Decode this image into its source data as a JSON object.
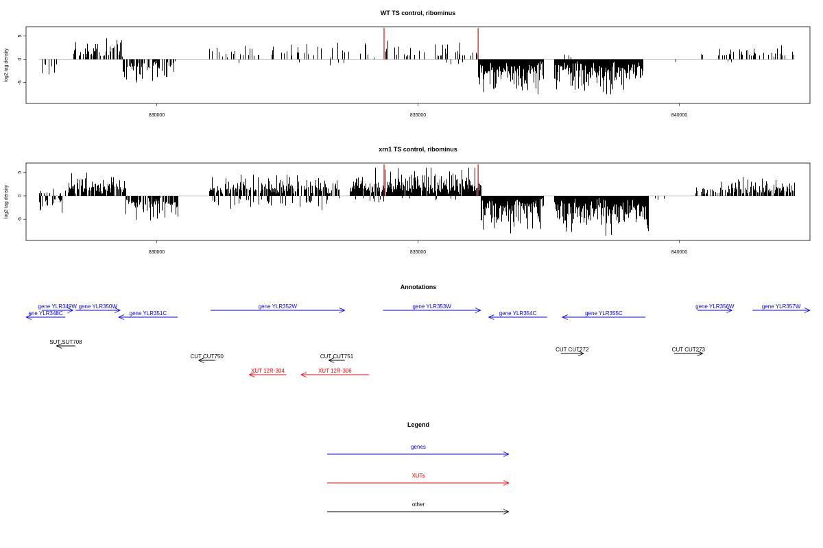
{
  "chart_data": [
    {
      "type": "bar",
      "title": "WT TS control, ribominus",
      "ylabel": "log2 tag density",
      "xlim": [
        827500,
        842500
      ],
      "ylim": [
        -9.5,
        7
      ],
      "xticks": [
        830000,
        835000,
        840000
      ],
      "yticks": [
        5,
        0,
        -5
      ],
      "markers": [
        834350,
        836150
      ],
      "segments": [
        {
          "start": 827750,
          "end": 828100,
          "sign": -1,
          "density": 0.25,
          "max": 3.5,
          "seed": 1
        },
        {
          "start": 828400,
          "end": 829350,
          "sign": 1,
          "density": 0.55,
          "max": 4.5,
          "seed": 2
        },
        {
          "start": 829350,
          "end": 830350,
          "sign": -1,
          "density": 0.6,
          "max": 5.0,
          "seed": 3
        },
        {
          "start": 831000,
          "end": 834200,
          "sign": 1,
          "density": 0.18,
          "max": 3.5,
          "seed": 4
        },
        {
          "start": 831500,
          "end": 834200,
          "sign": -1,
          "density": 0.05,
          "max": 2.0,
          "seed": 5
        },
        {
          "start": 834350,
          "end": 836150,
          "sign": 1,
          "density": 0.2,
          "max": 4.0,
          "seed": 6
        },
        {
          "start": 834500,
          "end": 836000,
          "sign": -1,
          "density": 0.04,
          "max": 2.5,
          "seed": 7
        },
        {
          "start": 836150,
          "end": 837400,
          "sign": -1,
          "density": 1.0,
          "max": 7.5,
          "seed": 8
        },
        {
          "start": 837600,
          "end": 839300,
          "sign": -1,
          "density": 1.0,
          "max": 7.5,
          "seed": 9
        },
        {
          "start": 837800,
          "end": 838000,
          "sign": 1,
          "density": 0.1,
          "max": 1.5,
          "seed": 10
        },
        {
          "start": 839900,
          "end": 840000,
          "sign": -1,
          "density": 0.2,
          "max": 1.5,
          "seed": 11
        },
        {
          "start": 840400,
          "end": 842200,
          "sign": 1,
          "density": 0.22,
          "max": 3.0,
          "seed": 12
        },
        {
          "start": 840400,
          "end": 841000,
          "sign": -1,
          "density": 0.03,
          "max": 1.5,
          "seed": 13
        }
      ]
    },
    {
      "type": "bar",
      "title": "xrn1 TS control, ribominus",
      "ylabel": "log2 tag density",
      "xlim": [
        827500,
        842500
      ],
      "ylim": [
        -9.5,
        7
      ],
      "xticks": [
        830000,
        835000,
        840000
      ],
      "yticks": [
        5,
        0,
        -5
      ],
      "markers": [
        834350,
        836150
      ],
      "segments": [
        {
          "start": 827750,
          "end": 828200,
          "sign": -1,
          "density": 0.5,
          "max": 4.5,
          "seed": 21
        },
        {
          "start": 827750,
          "end": 828300,
          "sign": 1,
          "density": 0.15,
          "max": 1.5,
          "seed": 22
        },
        {
          "start": 828300,
          "end": 829400,
          "sign": 1,
          "density": 0.85,
          "max": 5.0,
          "seed": 23
        },
        {
          "start": 829400,
          "end": 830400,
          "sign": -1,
          "density": 0.8,
          "max": 5.5,
          "seed": 24
        },
        {
          "start": 831000,
          "end": 833500,
          "sign": 1,
          "density": 0.7,
          "max": 4.5,
          "seed": 25
        },
        {
          "start": 831000,
          "end": 833500,
          "sign": -1,
          "density": 0.15,
          "max": 3.5,
          "seed": 26
        },
        {
          "start": 833700,
          "end": 836200,
          "sign": 1,
          "density": 0.95,
          "max": 6.0,
          "seed": 27
        },
        {
          "start": 833700,
          "end": 836000,
          "sign": -1,
          "density": 0.08,
          "max": 2.0,
          "seed": 28
        },
        {
          "start": 836200,
          "end": 837400,
          "sign": -1,
          "density": 1.0,
          "max": 8.0,
          "seed": 29
        },
        {
          "start": 837600,
          "end": 839400,
          "sign": -1,
          "density": 1.0,
          "max": 8.5,
          "seed": 30
        },
        {
          "start": 839500,
          "end": 839800,
          "sign": -1,
          "density": 0.2,
          "max": 1.5,
          "seed": 31
        },
        {
          "start": 840300,
          "end": 841000,
          "sign": 1,
          "density": 0.4,
          "max": 3.0,
          "seed": 32
        },
        {
          "start": 841000,
          "end": 842200,
          "sign": 1,
          "density": 0.7,
          "max": 4.0,
          "seed": 33
        }
      ]
    }
  ],
  "annotations": {
    "title": "Annotations",
    "features": [
      {
        "label": "gene YLR349W",
        "kind": "genes",
        "start": 827800,
        "end": 828400,
        "strand": "+",
        "row": 1
      },
      {
        "label": "ene YLR348C",
        "kind": "genes",
        "start": 827500,
        "end": 828250,
        "strand": "-",
        "row": 2
      },
      {
        "label": "gene YLR350W",
        "kind": "genes",
        "start": 828450,
        "end": 829300,
        "strand": "+",
        "row": 1
      },
      {
        "label": "gene YLR351C",
        "kind": "genes",
        "start": 829270,
        "end": 830400,
        "strand": "-",
        "row": 2
      },
      {
        "label": "gene YLR352W",
        "kind": "genes",
        "start": 831030,
        "end": 833600,
        "strand": "+",
        "row": 1
      },
      {
        "label": "gene YLR353W",
        "kind": "genes",
        "start": 834330,
        "end": 836200,
        "strand": "+",
        "row": 1
      },
      {
        "label": "gene YLR354C",
        "kind": "genes",
        "start": 836350,
        "end": 837470,
        "strand": "-",
        "row": 2
      },
      {
        "label": "gene YLR355C",
        "kind": "genes",
        "start": 837760,
        "end": 839350,
        "strand": "-",
        "row": 2
      },
      {
        "label": "gene YLR356W",
        "kind": "genes",
        "start": 840350,
        "end": 841010,
        "strand": "+",
        "row": 1
      },
      {
        "label": "gene YLR357W",
        "kind": "genes",
        "start": 841400,
        "end": 842500,
        "strand": "+",
        "row": 1
      },
      {
        "label": "SUT SUT708",
        "kind": "other",
        "start": 828080,
        "end": 828440,
        "strand": "-",
        "row": 4
      },
      {
        "label": "CUT CUT750",
        "kind": "other",
        "start": 830800,
        "end": 831120,
        "strand": "-",
        "row": 6
      },
      {
        "label": "CUT CUT751",
        "kind": "other",
        "start": 833290,
        "end": 833600,
        "strand": "-",
        "row": 6
      },
      {
        "label": "CUT CUT272",
        "kind": "other",
        "start": 837730,
        "end": 838170,
        "strand": "+",
        "row": 5
      },
      {
        "label": "CUT CUT273",
        "kind": "other",
        "start": 839900,
        "end": 840450,
        "strand": "+",
        "row": 5
      },
      {
        "label": "XUT 12R-304",
        "kind": "XUTs",
        "start": 831770,
        "end": 832480,
        "strand": "-",
        "row": 8
      },
      {
        "label": "XUT 12R-306",
        "kind": "XUTs",
        "start": 832760,
        "end": 834060,
        "strand": "-",
        "row": 8
      }
    ]
  },
  "legend": {
    "title": "Legend",
    "items": [
      {
        "label": "genes",
        "color": "#0000ff"
      },
      {
        "label": "XUTs",
        "color": "#ff0000"
      },
      {
        "label": "other",
        "color": "#000000"
      }
    ]
  },
  "colors": {
    "genes": "#0000ff",
    "XUTs": "#ff0000",
    "other": "#000000",
    "marker": "#ff0000",
    "baseline": "#aaaaaa"
  }
}
